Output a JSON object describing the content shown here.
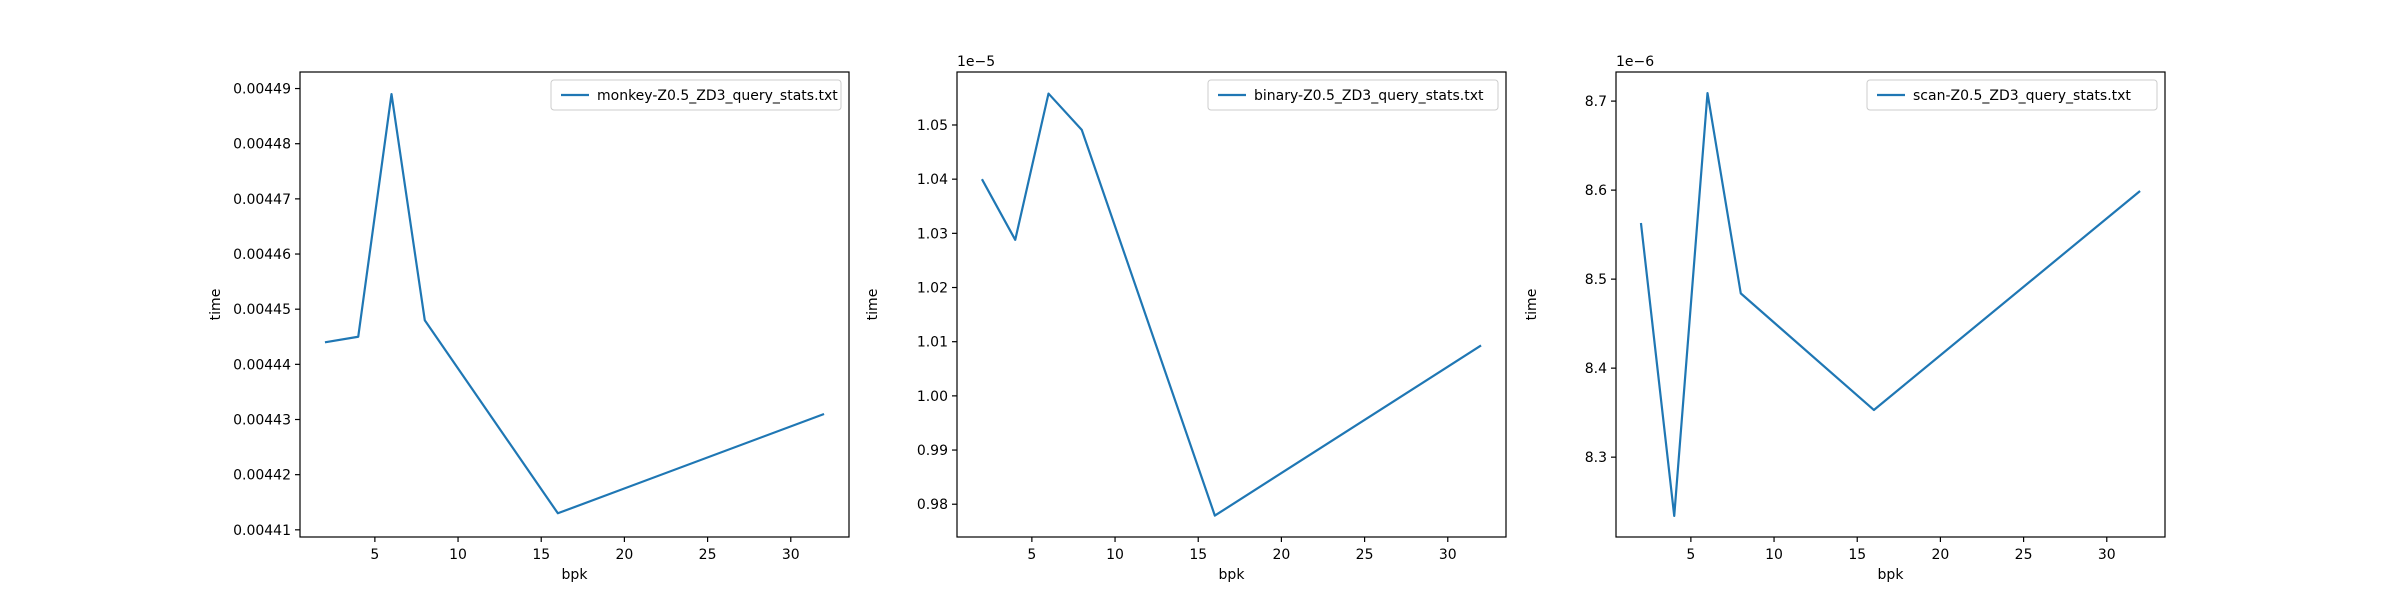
{
  "chart_data": [
    {
      "type": "line",
      "xlabel": "bpk",
      "ylabel": "time",
      "offset_text": "",
      "x": [
        2,
        4,
        6,
        8,
        16,
        32
      ],
      "series": [
        {
          "name": "monkey-Z0.5_ZD3_query_stats.txt",
          "color": "#1f77b4",
          "values": [
            0.004444,
            0.004445,
            0.004489,
            0.004448,
            0.004413,
            0.004431
          ]
        }
      ],
      "xticks": [
        5,
        10,
        15,
        20,
        25,
        30
      ],
      "xtick_labels": [
        "5",
        "10",
        "15",
        "20",
        "25",
        "30"
      ],
      "yticks": [
        0.00441,
        0.00442,
        0.00443,
        0.00444,
        0.00445,
        0.00446,
        0.00447,
        0.00448,
        0.00449
      ],
      "ytick_labels": [
        "0.00441",
        "0.00442",
        "0.00443",
        "0.00444",
        "0.00445",
        "0.00446",
        "0.00447",
        "0.00448",
        "0.00449"
      ],
      "xlim": [
        0.5,
        33.5
      ],
      "ylim": [
        0.0044087,
        0.004493
      ],
      "legend": "upper right",
      "grid": false
    },
    {
      "type": "line",
      "xlabel": "bpk",
      "ylabel": "time",
      "offset_text": "1e−5",
      "x": [
        2,
        4,
        6,
        8,
        16,
        32
      ],
      "series": [
        {
          "name": "binary-Z0.5_ZD3_query_stats.txt",
          "color": "#1f77b4",
          "values": [
            1.04,
            1.0288,
            1.0558,
            1.0491,
            0.9779,
            1.0093
          ]
        }
      ],
      "xticks": [
        5,
        10,
        15,
        20,
        25,
        30
      ],
      "xtick_labels": [
        "5",
        "10",
        "15",
        "20",
        "25",
        "30"
      ],
      "yticks": [
        0.98,
        0.99,
        1.0,
        1.01,
        1.02,
        1.03,
        1.04,
        1.05
      ],
      "ytick_labels": [
        "0.98",
        "0.99",
        "1.00",
        "1.01",
        "1.02",
        "1.03",
        "1.04",
        "1.05"
      ],
      "xlim": [
        0.5,
        33.5
      ],
      "ylim": [
        0.97395,
        1.05978
      ],
      "legend": "upper right",
      "grid": false
    },
    {
      "type": "line",
      "xlabel": "bpk",
      "ylabel": "time",
      "offset_text": "1e−6",
      "x": [
        2,
        4,
        6,
        8,
        16,
        32
      ],
      "series": [
        {
          "name": "scan-Z0.5_ZD3_query_stats.txt",
          "color": "#1f77b4",
          "values": [
            8.563,
            8.234,
            8.709,
            8.484,
            8.353,
            8.599
          ]
        }
      ],
      "xticks": [
        5,
        10,
        15,
        20,
        25,
        30
      ],
      "xtick_labels": [
        "5",
        "10",
        "15",
        "20",
        "25",
        "30"
      ],
      "yticks": [
        8.3,
        8.4,
        8.5,
        8.6,
        8.7
      ],
      "ytick_labels": [
        "8.3",
        "8.4",
        "8.5",
        "8.6",
        "8.7"
      ],
      "xlim": [
        0.5,
        33.5
      ],
      "ylim": [
        8.2103,
        8.7327
      ],
      "legend": "upper right",
      "grid": false
    }
  ]
}
